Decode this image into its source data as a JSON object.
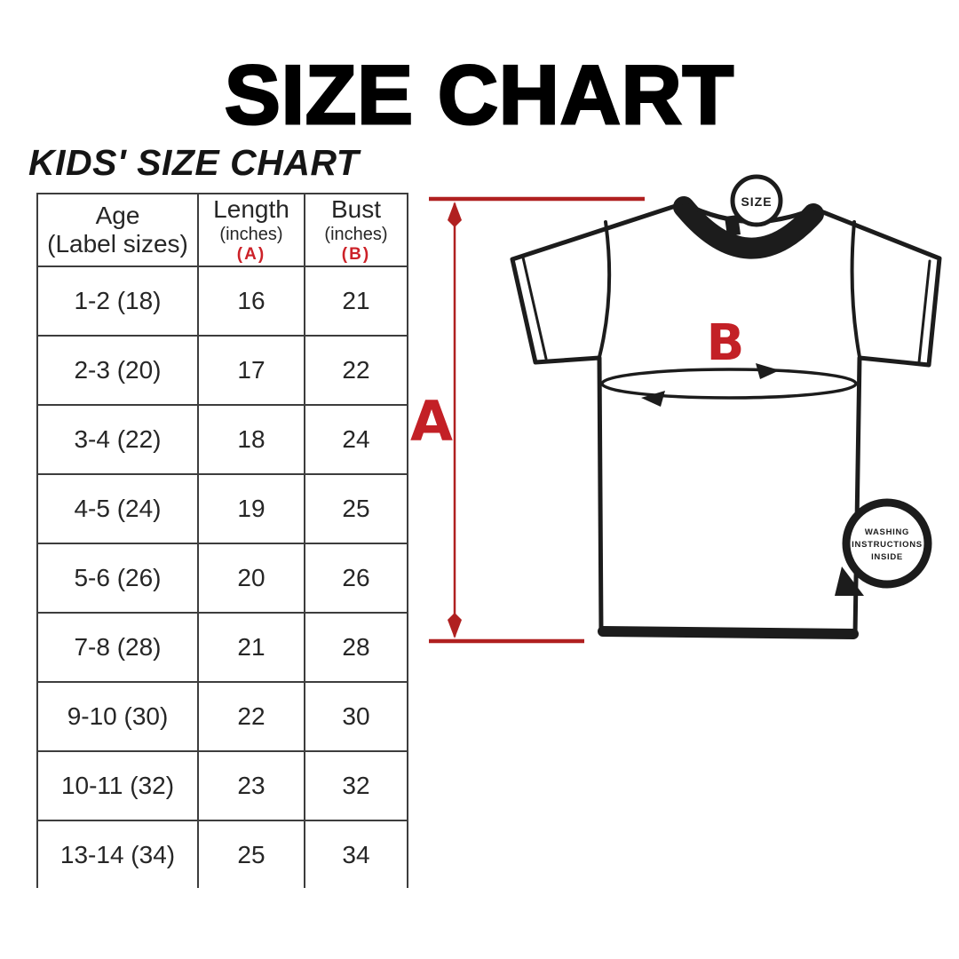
{
  "title": "SIZE CHART",
  "table": {
    "heading": "KIDS' SIZE CHART",
    "columns": [
      {
        "label": "Age",
        "sub": "(Label sizes)",
        "marker": ""
      },
      {
        "label": "Length",
        "sub": "(inches)",
        "marker": "(A)"
      },
      {
        "label": "Bust",
        "sub": "(inches)",
        "marker": "(B)"
      }
    ],
    "rows": [
      {
        "age": "1-2 (18)",
        "length": "16",
        "bust": "21"
      },
      {
        "age": "2-3 (20)",
        "length": "17",
        "bust": "22"
      },
      {
        "age": "3-4 (22)",
        "length": "18",
        "bust": "24"
      },
      {
        "age": "4-5 (24)",
        "length": "19",
        "bust": "25"
      },
      {
        "age": "5-6 (26)",
        "length": "20",
        "bust": "26"
      },
      {
        "age": "7-8 (28)",
        "length": "21",
        "bust": "28"
      },
      {
        "age": "9-10 (30)",
        "length": "22",
        "bust": "30"
      },
      {
        "age": "10-11 (32)",
        "length": "23",
        "bust": "32"
      },
      {
        "age": "13-14 (34)",
        "length": "25",
        "bust": "34"
      }
    ]
  },
  "chart_data": {
    "type": "table",
    "title": "KIDS' SIZE CHART",
    "columns": [
      "Age (Label sizes)",
      "Length (inches) (A)",
      "Bust (inches) (B)"
    ],
    "rows": [
      [
        "1-2 (18)",
        16,
        21
      ],
      [
        "2-3 (20)",
        17,
        22
      ],
      [
        "3-4 (22)",
        18,
        24
      ],
      [
        "4-5 (24)",
        19,
        25
      ],
      [
        "5-6 (26)",
        20,
        26
      ],
      [
        "7-8 (28)",
        21,
        28
      ],
      [
        "9-10 (30)",
        22,
        30
      ],
      [
        "10-11 (32)",
        23,
        32
      ],
      [
        "13-14 (34)",
        25,
        34
      ]
    ],
    "units": "inches",
    "notes": "A = length measured vertically on shirt; B = bust measured around chest"
  },
  "diagram": {
    "label_a": "A",
    "label_b": "B",
    "size_tag": "SIZE",
    "washing_lines": [
      "WASHING",
      "INSTRUCTIONS",
      "INSIDE"
    ]
  },
  "colors": {
    "dimension_red": "#b02020",
    "letter_red": "#c32026",
    "marker_red": "#cc2128",
    "outline_black": "#1c1c1c"
  }
}
